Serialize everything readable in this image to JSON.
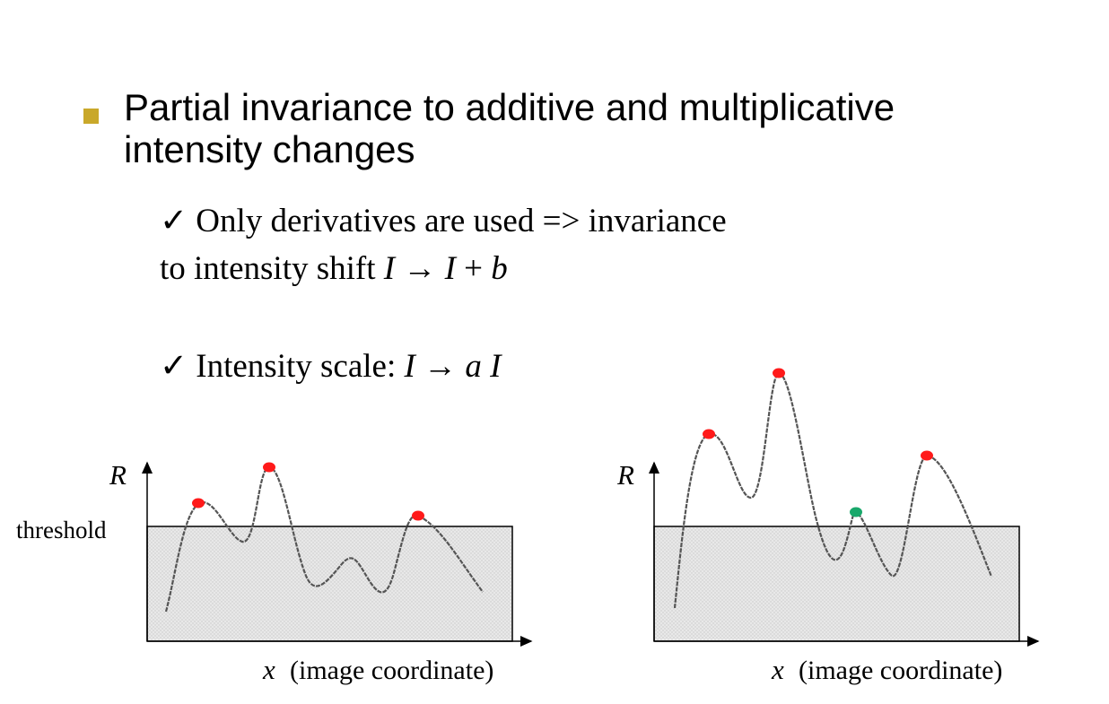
{
  "heading": {
    "line1": "Partial invariance to additive and multiplicative",
    "line2": "intensity changes"
  },
  "points": {
    "p1_check": "✓",
    "p1_line1": "Only derivatives are used => invariance",
    "p1_line2_prefix": "to intensity shift",
    "p1_formula_I1": "I",
    "p1_formula_arrow": "→",
    "p1_formula_I2": "I",
    "p1_formula_plus": "+",
    "p1_formula_b": "b",
    "p2_check": "✓",
    "p2_prefix": "Intensity scale:",
    "p2_formula_I1": "I",
    "p2_formula_arrow": "→",
    "p2_formula_a": "a",
    "p2_formula_I2": "I"
  },
  "plot_left": {
    "y_label": "R",
    "threshold_label": "threshold",
    "x_label_var": "x",
    "x_label_text": "(image coordinate)"
  },
  "plot_right": {
    "y_label": "R",
    "x_label_var": "x",
    "x_label_text": "(image coordinate)"
  },
  "colors": {
    "bullet": "#c9a82a",
    "below_threshold_fill": "#e4e4e4",
    "curve": "#555555",
    "max_above": "#ff1a1a",
    "max_not_detected": "#19a86b"
  }
}
